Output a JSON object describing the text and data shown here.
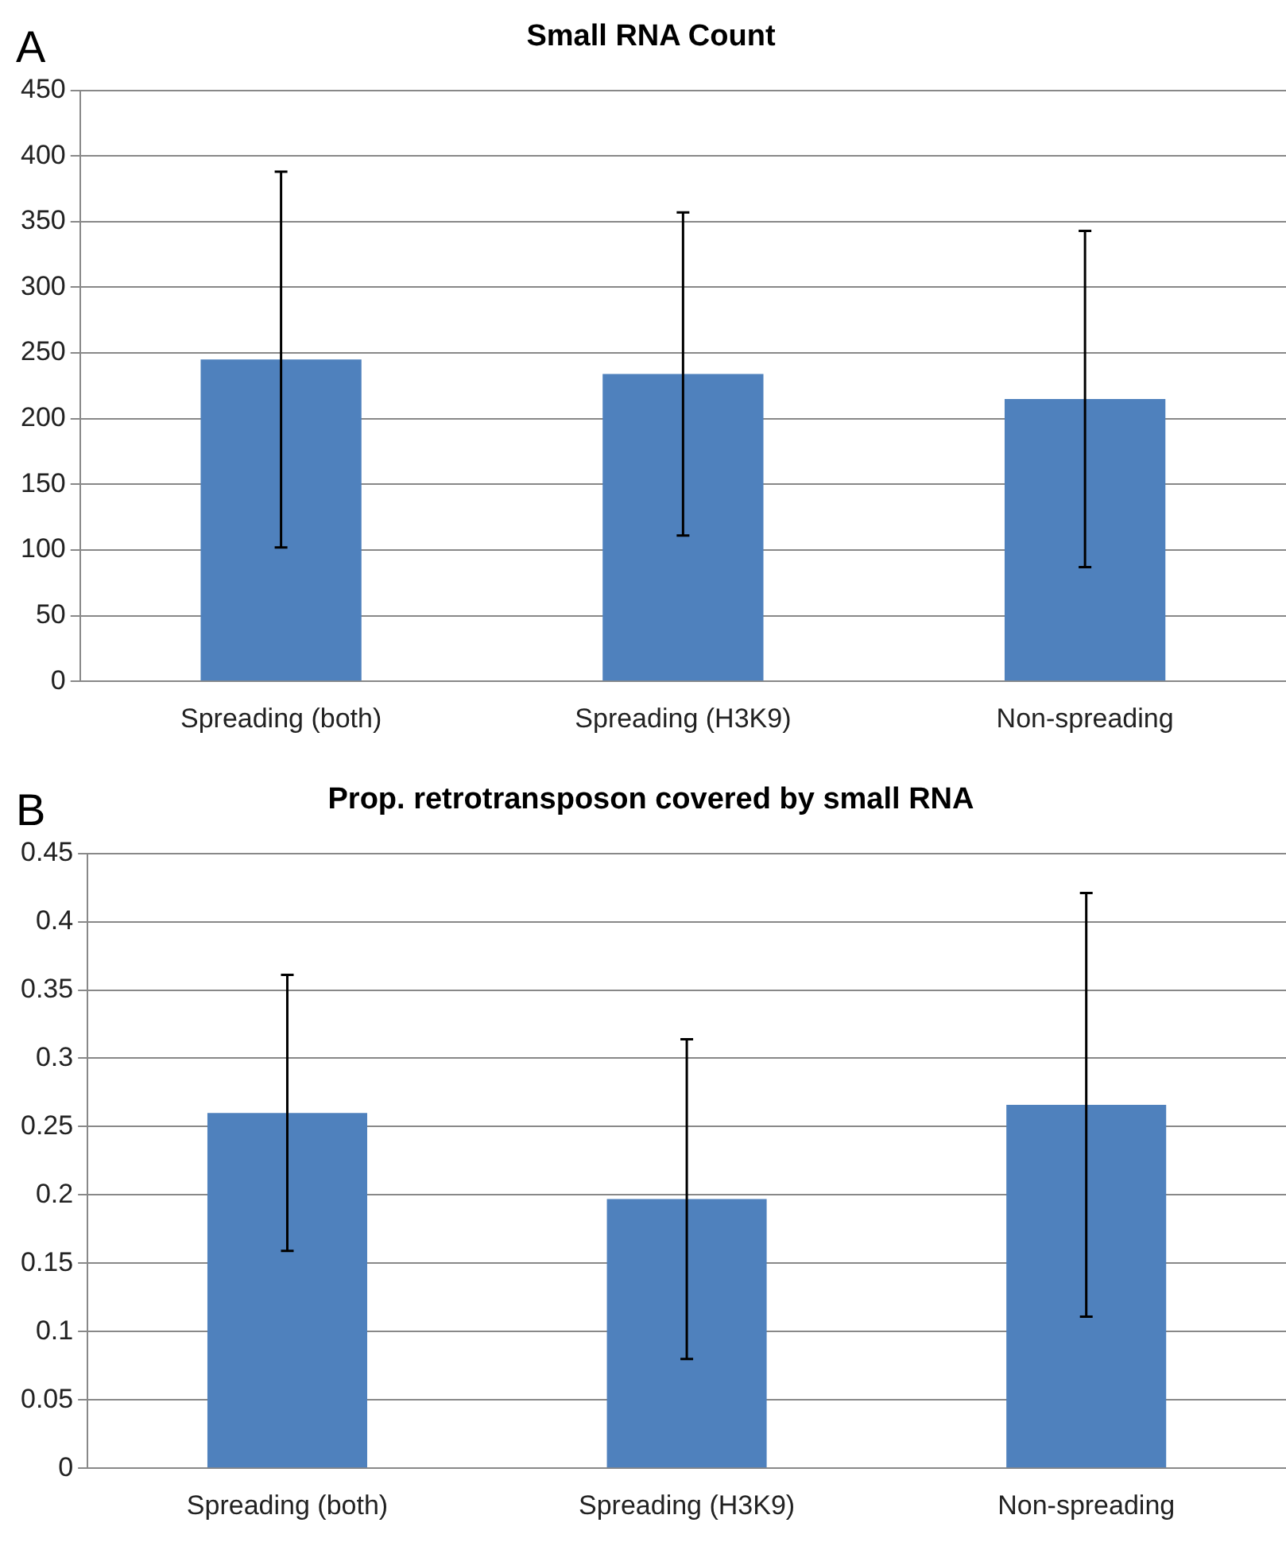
{
  "chart_data": [
    {
      "type": "bar",
      "title": "Small RNA Count",
      "annotations": [
        "A"
      ],
      "categories": [
        "Spreading (both)",
        "Spreading (H3K9)",
        "Non-spreading"
      ],
      "values": [
        245,
        234,
        215
      ],
      "errors": [
        143,
        123,
        128
      ],
      "color": "#4f81bd",
      "ylim": [
        0,
        450
      ],
      "yticks": [
        0,
        50,
        100,
        150,
        200,
        250,
        300,
        350,
        400,
        450
      ],
      "grid": "y",
      "legend": false
    },
    {
      "type": "bar",
      "title": "Prop. retrotransposon covered by small RNA",
      "annotations": [
        "B"
      ],
      "categories": [
        "Spreading (both)",
        "Spreading (H3K9)",
        "Non-spreading"
      ],
      "values": [
        0.26,
        0.197,
        0.266
      ],
      "errors": [
        0.101,
        0.117,
        0.155
      ],
      "color": "#4f81bd",
      "ylim": [
        0,
        0.45
      ],
      "yticks": [
        0,
        0.05,
        0.1,
        0.15,
        0.2,
        0.25,
        0.3,
        0.35,
        0.4,
        0.45
      ],
      "grid": "y",
      "legend": false
    }
  ]
}
